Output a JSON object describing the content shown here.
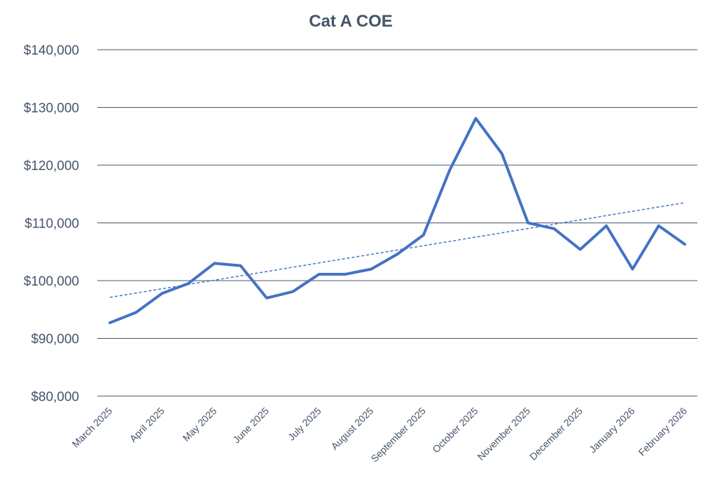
{
  "chart_data": {
    "type": "line",
    "title": "Cat A COE",
    "xlabel": "",
    "ylabel": "",
    "ylim": [
      80000,
      140000
    ],
    "ytick_values": [
      80000,
      90000,
      100000,
      110000,
      120000,
      130000,
      140000
    ],
    "ytick_labels": [
      "$80,000",
      "$90,000",
      "$100,000",
      "$110,000",
      "$120,000",
      "$130,000",
      "$140,000"
    ],
    "grid": true,
    "x": [
      "March 2025",
      "",
      "April 2025",
      "",
      "May 2025",
      "",
      "June 2025",
      "",
      "July 2025",
      "",
      "August 2025",
      "",
      "September 2025",
      "",
      "October 2025",
      "",
      "November 2025",
      "",
      "December 2025",
      "",
      "January 2026",
      "",
      "February 2026"
    ],
    "series": [
      {
        "name": "Cat A COE",
        "color": "#4472c4",
        "values": [
          92700,
          94500,
          97800,
          99500,
          103000,
          102600,
          97000,
          98100,
          101100,
          101100,
          102000,
          104600,
          107900,
          119100,
          128100,
          122000,
          110000,
          109000,
          105400,
          109500,
          102000,
          109500,
          106300
        ]
      }
    ],
    "trendline": {
      "name": "Linear (Cat A COE)",
      "color": "#4472c4",
      "start": 97100,
      "end": 113500
    }
  }
}
